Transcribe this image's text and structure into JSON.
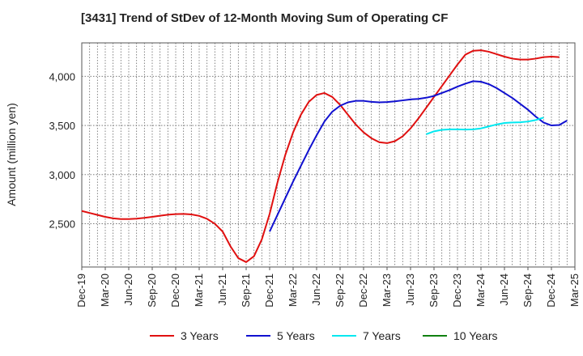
{
  "chart_data": {
    "type": "line",
    "title": "[3431]  Trend of StDev of 12-Month Moving Sum of Operating CF",
    "ylabel": "Amount (million yen)",
    "xlabel": "",
    "grid": true,
    "legend_position": "bottom",
    "ylim": [
      2060,
      4340
    ],
    "yticks": [
      2500,
      3000,
      3500,
      4000
    ],
    "ytick_labels": [
      "2,500",
      "3,000",
      "3,500",
      "4,000"
    ],
    "xticks": [
      "Dec-19",
      "Mar-20",
      "Jun-20",
      "Sep-20",
      "Dec-20",
      "Mar-21",
      "Jun-21",
      "Sep-21",
      "Dec-21",
      "Mar-22",
      "Jun-22",
      "Sep-22",
      "Dec-22",
      "Mar-23",
      "Jun-23",
      "Sep-23",
      "Dec-23",
      "Mar-24",
      "Jun-24",
      "Sep-24",
      "Dec-24",
      "Mar-25"
    ],
    "x_start": "Dec-19",
    "x_months": 63,
    "series": [
      {
        "name": "3 Years",
        "color": "#e01010",
        "start": "Dec-19",
        "values": [
          2630,
          2610,
          2590,
          2570,
          2555,
          2548,
          2548,
          2552,
          2560,
          2570,
          2582,
          2592,
          2598,
          2600,
          2595,
          2580,
          2550,
          2500,
          2420,
          2270,
          2150,
          2110,
          2170,
          2340,
          2600,
          2920,
          3200,
          3430,
          3610,
          3740,
          3810,
          3830,
          3790,
          3710,
          3610,
          3510,
          3430,
          3370,
          3330,
          3320,
          3340,
          3390,
          3470,
          3570,
          3680,
          3790,
          3900,
          4010,
          4120,
          4220,
          4260,
          4265,
          4250,
          4225,
          4200,
          4180,
          4170,
          4170,
          4180,
          4195,
          4200,
          4195
        ]
      },
      {
        "name": "5 Years",
        "color": "#1010d0",
        "start": "Dec-21",
        "values": [
          2420,
          2590,
          2760,
          2930,
          3090,
          3250,
          3400,
          3540,
          3640,
          3700,
          3735,
          3750,
          3750,
          3740,
          3735,
          3738,
          3745,
          3755,
          3765,
          3770,
          3782,
          3800,
          3830,
          3860,
          3895,
          3925,
          3950,
          3945,
          3920,
          3880,
          3830,
          3780,
          3720,
          3660,
          3590,
          3530,
          3500,
          3505,
          3550
        ]
      },
      {
        "name": "7 Years",
        "color": "#00e8f0",
        "start": "Aug-23",
        "values": [
          3410,
          3440,
          3455,
          3460,
          3460,
          3458,
          3460,
          3470,
          3490,
          3510,
          3525,
          3530,
          3532,
          3540,
          3555,
          3580
        ]
      },
      {
        "name": "10 Years",
        "color": "#108010",
        "start": "Dec-19",
        "values": []
      }
    ]
  }
}
